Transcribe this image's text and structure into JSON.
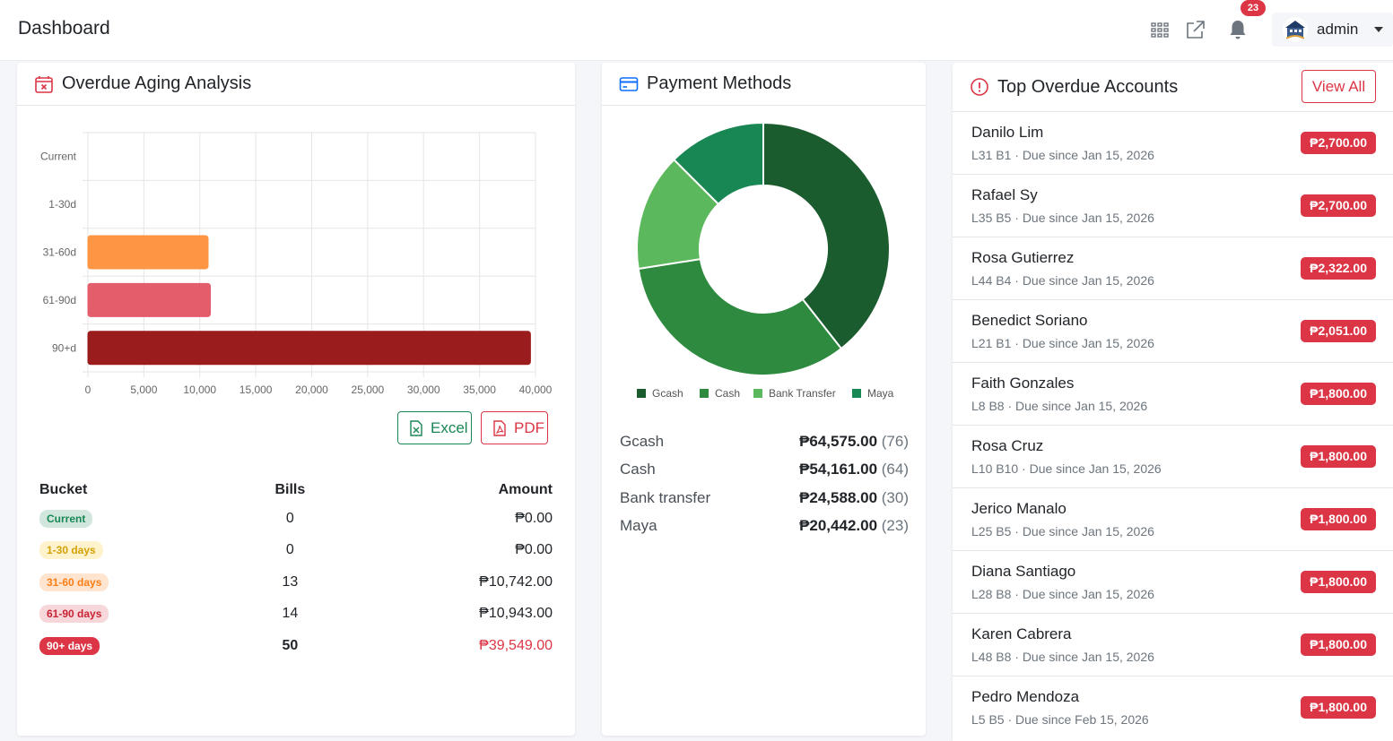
{
  "header": {
    "title": "Dashboard",
    "notification_count": "23",
    "user_name": "admin"
  },
  "aging": {
    "title": "Overdue Aging Analysis",
    "excel_label": "Excel",
    "pdf_label": "PDF",
    "table": {
      "headers": [
        "Bucket",
        "Bills",
        "Amount"
      ],
      "rows": [
        {
          "bucket": "Current",
          "bills": "0",
          "amount": "₱0.00"
        },
        {
          "bucket": "1-30 days",
          "bills": "0",
          "amount": "₱0.00"
        },
        {
          "bucket": "31-60 days",
          "bills": "13",
          "amount": "₱10,742.00"
        },
        {
          "bucket": "61-90 days",
          "bills": "14",
          "amount": "₱10,943.00"
        },
        {
          "bucket": "90+ days",
          "bills": "50",
          "amount": "₱39,549.00"
        }
      ]
    }
  },
  "chart_data": [
    {
      "type": "bar",
      "orientation": "horizontal",
      "categories": [
        "Current",
        "1-30d",
        "31-60d",
        "61-90d",
        "90+d"
      ],
      "values": [
        0,
        0,
        10742,
        10943,
        39549
      ],
      "colors": [
        "#0d6efd",
        "#ffc107",
        "#fd9644",
        "#e35d6a",
        "#9b1c1c"
      ],
      "xlim": [
        0,
        40000
      ],
      "xticks": [
        "0",
        "5,000",
        "10,000",
        "15,000",
        "20,000",
        "25,000",
        "30,000",
        "35,000",
        "40,000"
      ],
      "grid": true
    },
    {
      "type": "pie",
      "donut": true,
      "labels": [
        "Gcash",
        "Cash",
        "Bank Transfer",
        "Maya"
      ],
      "values": [
        64575,
        54161,
        24588,
        20442
      ],
      "colors": [
        "#1a5c2e",
        "#2d8a3e",
        "#5cb85c",
        "#198754"
      ],
      "legend": "bottom"
    }
  ],
  "payments": {
    "title": "Payment Methods",
    "items": [
      {
        "name": "Gcash",
        "amount": "₱64,575.00",
        "count": "(76)"
      },
      {
        "name": "Cash",
        "amount": "₱54,161.00",
        "count": "(64)"
      },
      {
        "name": "Bank transfer",
        "amount": "₱24,588.00",
        "count": "(30)"
      },
      {
        "name": "Maya",
        "amount": "₱20,442.00",
        "count": "(23)"
      }
    ]
  },
  "overdue": {
    "title": "Top Overdue Accounts",
    "view_all_label": "View All",
    "accounts": [
      {
        "name": "Danilo Lim",
        "sub": "L31 B1 · Due since Jan 15, 2026",
        "amount": "₱2,700.00"
      },
      {
        "name": "Rafael Sy",
        "sub": "L35 B5 · Due since Jan 15, 2026",
        "amount": "₱2,700.00"
      },
      {
        "name": "Rosa Gutierrez",
        "sub": "L44 B4 · Due since Jan 15, 2026",
        "amount": "₱2,322.00"
      },
      {
        "name": "Benedict Soriano",
        "sub": "L21 B1 · Due since Jan 15, 2026",
        "amount": "₱2,051.00"
      },
      {
        "name": "Faith Gonzales",
        "sub": "L8 B8 · Due since Jan 15, 2026",
        "amount": "₱1,800.00"
      },
      {
        "name": "Rosa Cruz",
        "sub": "L10 B10 · Due since Jan 15, 2026",
        "amount": "₱1,800.00"
      },
      {
        "name": "Jerico Manalo",
        "sub": "L25 B5 · Due since Jan 15, 2026",
        "amount": "₱1,800.00"
      },
      {
        "name": "Diana Santiago",
        "sub": "L28 B8 · Due since Jan 15, 2026",
        "amount": "₱1,800.00"
      },
      {
        "name": "Karen Cabrera",
        "sub": "L48 B8 · Due since Jan 15, 2026",
        "amount": "₱1,800.00"
      },
      {
        "name": "Pedro Mendoza",
        "sub": "L5 B5 · Due since Feb 15, 2026",
        "amount": "₱1,800.00"
      }
    ]
  }
}
